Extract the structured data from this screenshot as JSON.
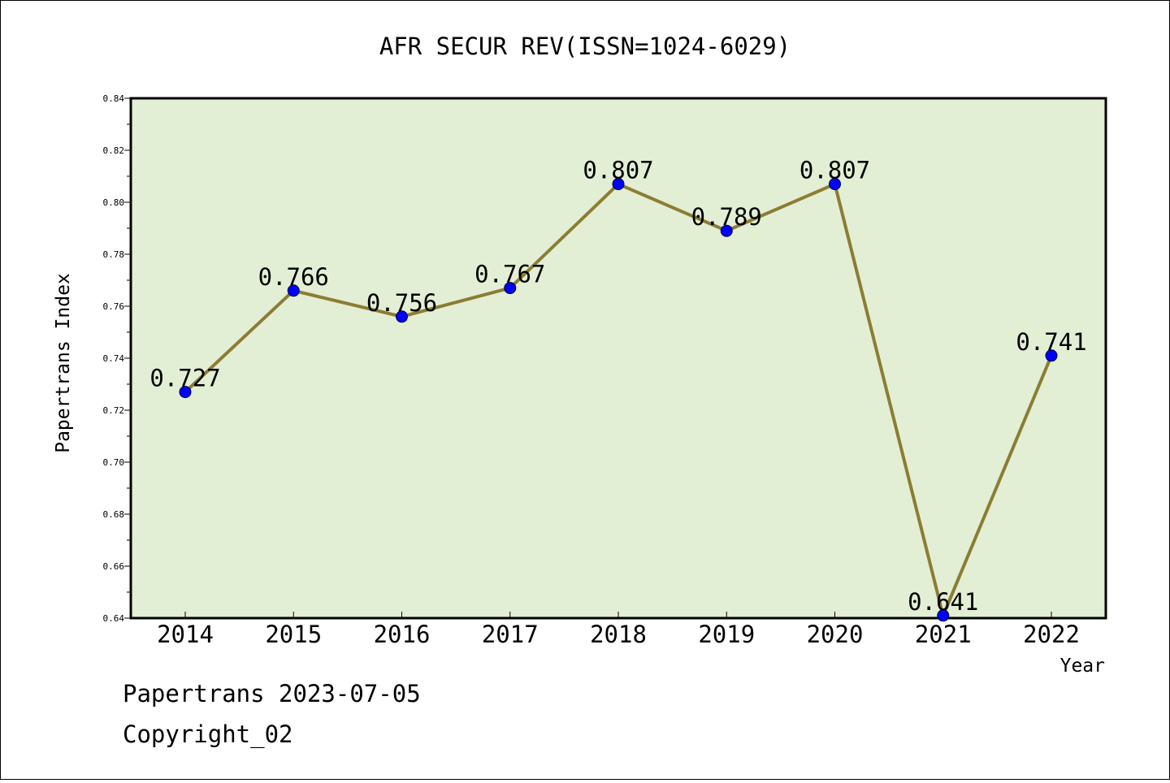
{
  "chart_data": {
    "type": "line",
    "title": "AFR SECUR REV(ISSN=1024-6029)",
    "xlabel": "Year",
    "ylabel": "Papertrans Index",
    "categories": [
      "2014",
      "2015",
      "2016",
      "2017",
      "2018",
      "2019",
      "2020",
      "2021",
      "2022"
    ],
    "series": [
      {
        "values": [
          0.727,
          0.766,
          0.756,
          0.767,
          0.807,
          0.789,
          0.807,
          0.641,
          0.741
        ],
        "labels": [
          "0.727",
          "0.766",
          "0.756",
          "0.767",
          "0.807",
          "0.789",
          "0.807",
          "0.641",
          "0.741"
        ]
      }
    ],
    "ylim": [
      0.64,
      0.84
    ],
    "yticks": [
      "0.64",
      "0.66",
      "0.68",
      "0.70",
      "0.72",
      "0.74",
      "0.76",
      "0.78",
      "0.80",
      "0.82",
      "0.84"
    ],
    "grid": false,
    "legend": "none",
    "colors": {
      "plot_background": "#e2efd5",
      "line": "#8b7d32",
      "marker": "#0000ff",
      "axis": "#000000"
    }
  },
  "footer": {
    "line1": "Papertrans 2023-07-05",
    "line2": "Copyright_02"
  }
}
